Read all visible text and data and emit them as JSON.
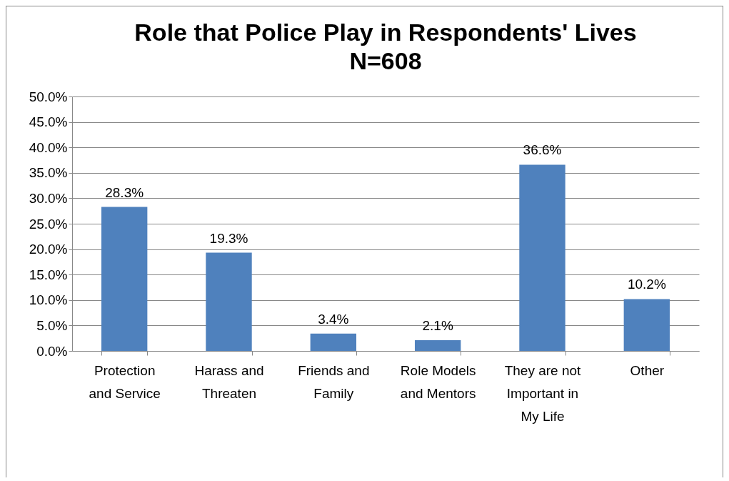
{
  "chart_data": {
    "type": "bar",
    "title": "Role that Police Play in Respondents' Lives",
    "subtitle": "N=608",
    "categories": [
      "Protection and Service",
      "Harass and Threaten",
      "Friends and Family",
      "Role Models and Mentors",
      "They are not Important in My Life",
      "Other"
    ],
    "values": [
      28.3,
      19.3,
      3.4,
      2.1,
      36.6,
      10.2
    ],
    "value_labels": [
      "28.3%",
      "19.3%",
      "3.4%",
      "2.1%",
      "36.6%",
      "10.2%"
    ],
    "color": "#4f81bd",
    "ylim": [
      0,
      50
    ],
    "yticks": [
      {
        "value": 0,
        "label": "0.0%"
      },
      {
        "value": 5,
        "label": "5.0%"
      },
      {
        "value": 10,
        "label": "10.0%"
      },
      {
        "value": 15,
        "label": "15.0%"
      },
      {
        "value": 20,
        "label": "20.0%"
      },
      {
        "value": 25,
        "label": "25.0%"
      },
      {
        "value": 30,
        "label": "30.0%"
      },
      {
        "value": 35,
        "label": "35.0%"
      },
      {
        "value": 40,
        "label": "40.0%"
      },
      {
        "value": 45,
        "label": "45.0%"
      },
      {
        "value": 50,
        "label": "50.0%"
      }
    ],
    "grid": "y"
  }
}
